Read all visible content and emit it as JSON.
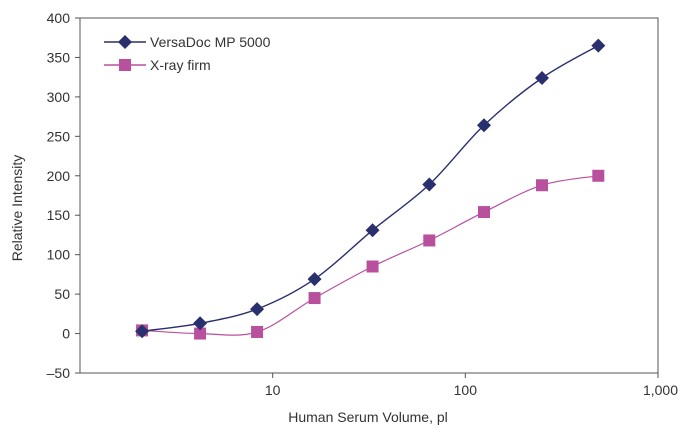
{
  "chart_data": {
    "type": "line",
    "x_scale": "log",
    "xlabel": "Human Serum Volume, pl",
    "ylabel": "Relative Intensity",
    "xlim": [
      1,
      1000
    ],
    "ylim": [
      -50,
      400
    ],
    "x_ticks": [
      {
        "value": 10,
        "label": "10"
      },
      {
        "value": 100,
        "label": "100"
      },
      {
        "value": 1000,
        "label": "1,000"
      }
    ],
    "y_ticks": [
      {
        "value": -50,
        "label": "–50"
      },
      {
        "value": 0,
        "label": "0"
      },
      {
        "value": 50,
        "label": "50"
      },
      {
        "value": 100,
        "label": "100"
      },
      {
        "value": 150,
        "label": "150"
      },
      {
        "value": 200,
        "label": "200"
      },
      {
        "value": 250,
        "label": "250"
      },
      {
        "value": 300,
        "label": "300"
      },
      {
        "value": 350,
        "label": "350"
      },
      {
        "value": 400,
        "label": "400"
      }
    ],
    "grid": false,
    "legend_position": "top-left",
    "series": [
      {
        "name": "VersaDoc MP 5000",
        "color": "#2a2f6e",
        "marker": "diamond",
        "x": [
          2.1,
          4.2,
          8.3,
          16.5,
          33,
          65,
          125,
          250,
          490
        ],
        "y": [
          3,
          13,
          31,
          69,
          131,
          189,
          264,
          324,
          365
        ]
      },
      {
        "name": "X-ray firm",
        "color": "#b8509e",
        "marker": "square",
        "x": [
          2.1,
          4.2,
          8.3,
          16.5,
          33,
          65,
          125,
          250,
          490
        ],
        "y": [
          4,
          0,
          2,
          45,
          85,
          118,
          154,
          188,
          200
        ]
      }
    ]
  }
}
